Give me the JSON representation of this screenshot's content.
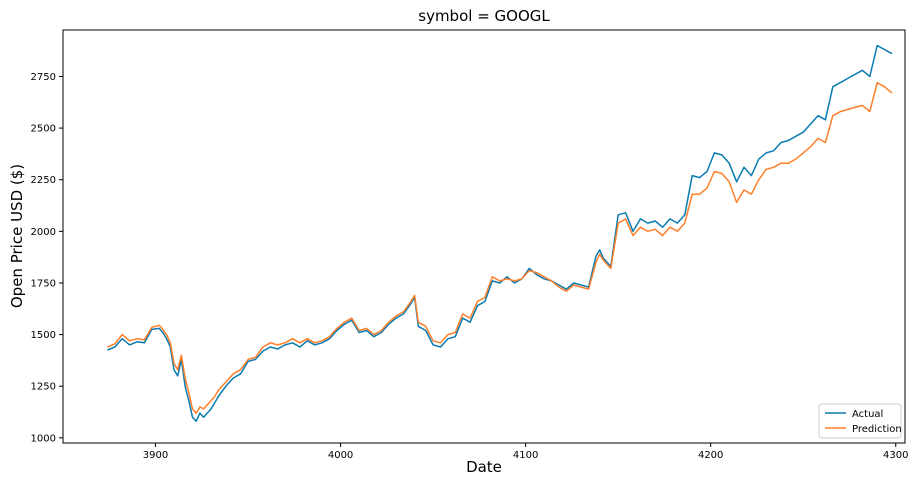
{
  "chart_data": {
    "type": "line",
    "title": "symbol = GOOGL",
    "xlabel": "Date",
    "ylabel": "Open Price USD ($)",
    "xlim": [
      3850,
      4305
    ],
    "ylim": [
      975,
      2975
    ],
    "xticks": [
      3900,
      4000,
      4100,
      4200,
      4300
    ],
    "yticks": [
      1000,
      1250,
      1500,
      1750,
      2000,
      2250,
      2500,
      2750
    ],
    "grid": false,
    "legend_position": "lower-right",
    "series": [
      {
        "name": "Actual",
        "color": "#0a7bb0",
        "x": [
          3874,
          3878,
          3882,
          3886,
          3890,
          3894,
          3898,
          3902,
          3904,
          3906,
          3908,
          3910,
          3912,
          3914,
          3916,
          3918,
          3920,
          3922,
          3924,
          3926,
          3928,
          3930,
          3932,
          3934,
          3938,
          3942,
          3946,
          3950,
          3954,
          3958,
          3962,
          3966,
          3970,
          3974,
          3978,
          3982,
          3986,
          3990,
          3994,
          3998,
          4002,
          4006,
          4010,
          4014,
          4018,
          4022,
          4026,
          4030,
          4034,
          4038,
          4040,
          4042,
          4046,
          4050,
          4054,
          4058,
          4062,
          4066,
          4070,
          4074,
          4078,
          4082,
          4086,
          4090,
          4094,
          4098,
          4102,
          4106,
          4110,
          4114,
          4118,
          4122,
          4126,
          4130,
          4134,
          4138,
          4140,
          4142,
          4146,
          4150,
          4154,
          4158,
          4162,
          4166,
          4170,
          4174,
          4178,
          4182,
          4186,
          4190,
          4194,
          4198,
          4202,
          4206,
          4210,
          4214,
          4218,
          4222,
          4226,
          4230,
          4234,
          4238,
          4242,
          4246,
          4250,
          4254,
          4258,
          4262,
          4266,
          4270,
          4274,
          4278,
          4282,
          4286,
          4290,
          4294,
          4298
        ],
        "values": [
          1425,
          1440,
          1480,
          1450,
          1465,
          1460,
          1525,
          1530,
          1510,
          1480,
          1440,
          1330,
          1300,
          1380,
          1250,
          1180,
          1100,
          1080,
          1120,
          1100,
          1120,
          1140,
          1170,
          1200,
          1250,
          1290,
          1310,
          1370,
          1380,
          1420,
          1440,
          1430,
          1450,
          1460,
          1440,
          1470,
          1450,
          1460,
          1480,
          1520,
          1550,
          1570,
          1510,
          1520,
          1490,
          1510,
          1550,
          1580,
          1600,
          1650,
          1680,
          1540,
          1520,
          1450,
          1440,
          1480,
          1490,
          1580,
          1560,
          1640,
          1660,
          1760,
          1750,
          1780,
          1750,
          1770,
          1820,
          1790,
          1770,
          1760,
          1740,
          1720,
          1750,
          1740,
          1730,
          1880,
          1910,
          1870,
          1830,
          2080,
          2090,
          2000,
          2060,
          2040,
          2050,
          2020,
          2060,
          2040,
          2080,
          2270,
          2260,
          2290,
          2380,
          2370,
          2330,
          2240,
          2310,
          2270,
          2350,
          2380,
          2390,
          2430,
          2440,
          2460,
          2480,
          2520,
          2560,
          2540,
          2700,
          2720,
          2740,
          2760,
          2780,
          2750,
          2900,
          2880,
          2860
        ]
      },
      {
        "name": "Prediction",
        "color": "#ff7f2a",
        "x": [
          3874,
          3878,
          3882,
          3886,
          3890,
          3894,
          3898,
          3902,
          3904,
          3906,
          3908,
          3910,
          3912,
          3914,
          3916,
          3918,
          3920,
          3922,
          3924,
          3926,
          3928,
          3930,
          3932,
          3934,
          3938,
          3942,
          3946,
          3950,
          3954,
          3958,
          3962,
          3966,
          3970,
          3974,
          3978,
          3982,
          3986,
          3990,
          3994,
          3998,
          4002,
          4006,
          4010,
          4014,
          4018,
          4022,
          4026,
          4030,
          4034,
          4038,
          4040,
          4042,
          4046,
          4050,
          4054,
          4058,
          4062,
          4066,
          4070,
          4074,
          4078,
          4082,
          4086,
          4090,
          4094,
          4098,
          4102,
          4106,
          4110,
          4114,
          4118,
          4122,
          4126,
          4130,
          4134,
          4138,
          4140,
          4142,
          4146,
          4150,
          4154,
          4158,
          4162,
          4166,
          4170,
          4174,
          4178,
          4182,
          4186,
          4190,
          4194,
          4198,
          4202,
          4206,
          4210,
          4214,
          4218,
          4222,
          4226,
          4230,
          4234,
          4238,
          4242,
          4246,
          4250,
          4254,
          4258,
          4262,
          4266,
          4270,
          4274,
          4278,
          4282,
          4286,
          4290,
          4294,
          4298
        ],
        "values": [
          1440,
          1455,
          1500,
          1470,
          1480,
          1475,
          1535,
          1545,
          1525,
          1500,
          1460,
          1360,
          1330,
          1400,
          1290,
          1220,
          1140,
          1120,
          1150,
          1140,
          1160,
          1180,
          1200,
          1230,
          1270,
          1310,
          1330,
          1380,
          1390,
          1440,
          1460,
          1450,
          1460,
          1480,
          1460,
          1480,
          1460,
          1470,
          1490,
          1530,
          1560,
          1580,
          1520,
          1530,
          1500,
          1520,
          1560,
          1590,
          1610,
          1660,
          1690,
          1560,
          1540,
          1470,
          1460,
          1500,
          1510,
          1600,
          1580,
          1660,
          1680,
          1780,
          1760,
          1770,
          1760,
          1770,
          1810,
          1800,
          1780,
          1760,
          1730,
          1710,
          1740,
          1730,
          1720,
          1850,
          1890,
          1860,
          1820,
          2040,
          2060,
          1980,
          2020,
          2000,
          2010,
          1980,
          2020,
          2000,
          2040,
          2180,
          2180,
          2210,
          2290,
          2280,
          2240,
          2140,
          2200,
          2180,
          2250,
          2300,
          2310,
          2330,
          2330,
          2350,
          2380,
          2410,
          2450,
          2430,
          2560,
          2580,
          2590,
          2600,
          2610,
          2580,
          2720,
          2700,
          2670
        ]
      }
    ]
  }
}
